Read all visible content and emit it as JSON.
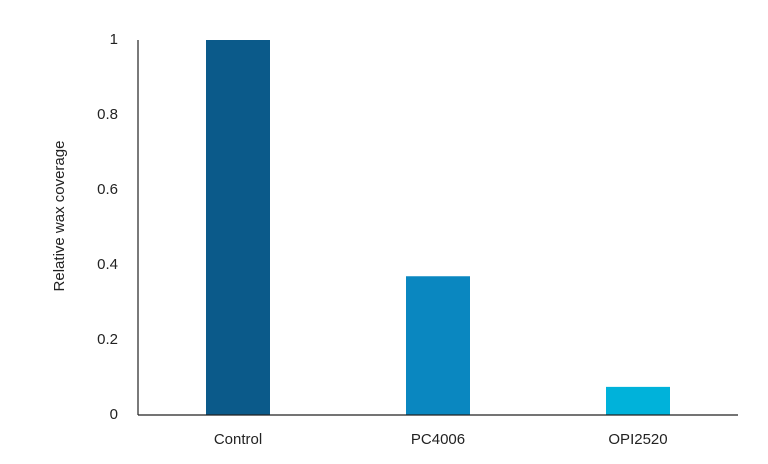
{
  "chart_data": {
    "type": "bar",
    "y_label": "Relative wax coverage",
    "categories": [
      "Control",
      "PC4006",
      "OPI2520"
    ],
    "values": [
      1,
      0.37,
      0.075
    ],
    "colors": [
      "#0b5a8a",
      "#0a87c0",
      "#00b2da"
    ],
    "ylim": [
      0,
      1
    ],
    "yticks": [
      0,
      0.2,
      0.4,
      0.6,
      0.8,
      1
    ],
    "grid": false
  }
}
